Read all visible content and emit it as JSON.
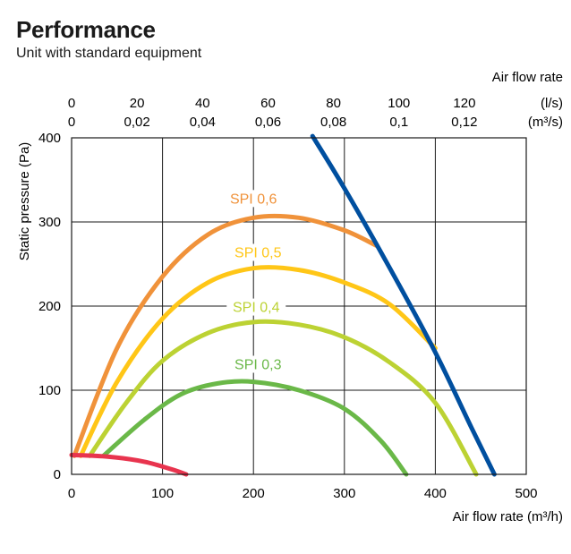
{
  "title": "Performance",
  "subtitle": "Unit with standard equipment",
  "chart_data": {
    "type": "line",
    "title": "Performance",
    "subtitle": "Unit with standard equipment",
    "xlabel": "Air flow rate (m³/h)",
    "ylabel": "Static pressure (Pa)",
    "xlim": [
      0,
      500
    ],
    "ylim": [
      0,
      400
    ],
    "x_ticks": [
      "0",
      "100",
      "200",
      "300",
      "400",
      "500"
    ],
    "y_ticks": [
      "0",
      "100",
      "200",
      "300",
      "400"
    ],
    "grid": true,
    "top_axis": {
      "title": "Air flow rate",
      "ls_unit": "(l/s)",
      "ls_ticks": [
        "0",
        "20",
        "40",
        "60",
        "80",
        "100",
        "120"
      ],
      "m3s_unit": "(m³/s)",
      "m3s_ticks": [
        "0",
        "0,02",
        "0,04",
        "0,06",
        "0,08",
        "0,1",
        "0,12"
      ]
    },
    "series": [
      {
        "name": "SPI 0,6",
        "label": "SPI 0,6",
        "color": "#f0923a",
        "points": [
          [
            3,
            22
          ],
          [
            50,
            150
          ],
          [
            100,
            235
          ],
          [
            150,
            285
          ],
          [
            200,
            305
          ],
          [
            250,
            305
          ],
          [
            300,
            290
          ],
          [
            335,
            272
          ]
        ]
      },
      {
        "name": "SPI 0,5",
        "label": "SPI 0,5",
        "color": "#ffc617",
        "points": [
          [
            10,
            22
          ],
          [
            50,
            110
          ],
          [
            100,
            185
          ],
          [
            150,
            228
          ],
          [
            200,
            245
          ],
          [
            250,
            243
          ],
          [
            300,
            228
          ],
          [
            350,
            202
          ],
          [
            400,
            150
          ]
        ]
      },
      {
        "name": "SPI 0,4",
        "label": "SPI 0,4",
        "color": "#bcd233",
        "points": [
          [
            20,
            22
          ],
          [
            60,
            85
          ],
          [
            100,
            135
          ],
          [
            150,
            168
          ],
          [
            200,
            181
          ],
          [
            250,
            178
          ],
          [
            300,
            163
          ],
          [
            350,
            133
          ],
          [
            400,
            85
          ],
          [
            445,
            0
          ]
        ]
      },
      {
        "name": "SPI 0,3",
        "label": "SPI 0,3",
        "color": "#6ab848",
        "points": [
          [
            35,
            22
          ],
          [
            80,
            65
          ],
          [
            120,
            95
          ],
          [
            160,
            108
          ],
          [
            200,
            110
          ],
          [
            250,
            100
          ],
          [
            300,
            78
          ],
          [
            340,
            40
          ],
          [
            368,
            0
          ]
        ]
      },
      {
        "name": "",
        "color": "#e8344e",
        "points": [
          [
            0,
            23
          ],
          [
            40,
            21
          ],
          [
            80,
            15
          ],
          [
            110,
            6
          ],
          [
            126,
            0
          ]
        ]
      },
      {
        "name": "",
        "color": "#004f9f",
        "points": [
          [
            265,
            402
          ],
          [
            300,
            340
          ],
          [
            350,
            245
          ],
          [
            400,
            145
          ],
          [
            440,
            55
          ],
          [
            465,
            0
          ]
        ]
      }
    ]
  }
}
